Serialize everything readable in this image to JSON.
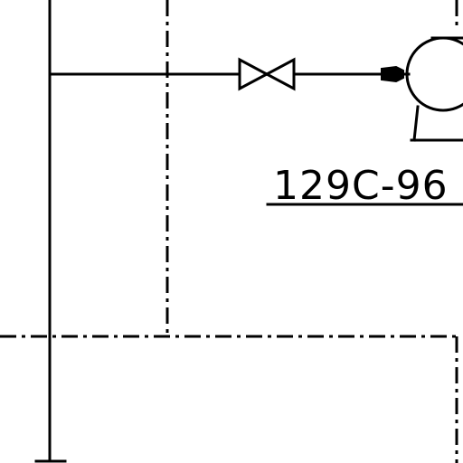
{
  "drawing": {
    "line_color": "#000000",
    "background_color": "#ffffff",
    "equipment_tag": "129C-96"
  }
}
